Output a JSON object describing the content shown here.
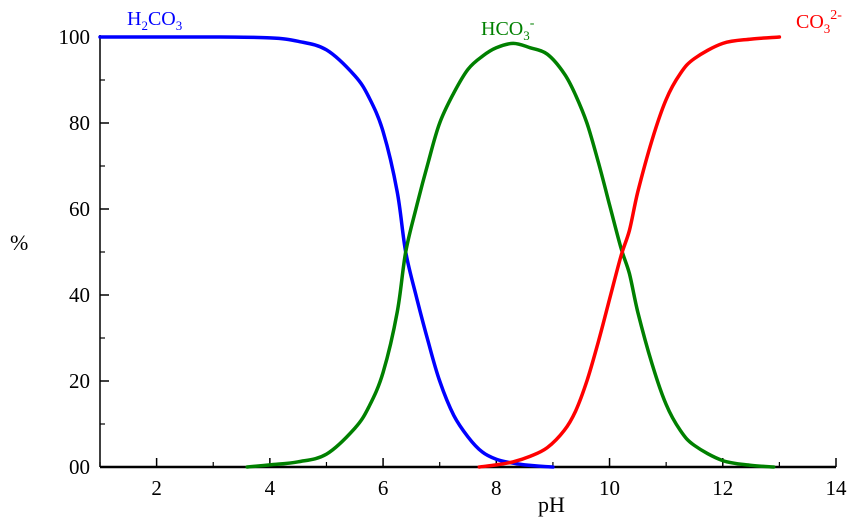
{
  "chart_data": {
    "type": "line",
    "xlabel": "pH",
    "ylabel": "%",
    "xlim": [
      1,
      14
    ],
    "ylim": [
      0,
      100
    ],
    "x_ticks": [
      2,
      4,
      6,
      8,
      10,
      12,
      14
    ],
    "x_minor_ticks": [
      1,
      3,
      5,
      7,
      9,
      11,
      13
    ],
    "y_ticks": [
      0,
      20,
      40,
      60,
      80,
      100
    ],
    "y_tick_labels": [
      "00",
      "20",
      "40",
      "60",
      "80",
      "100"
    ],
    "grid": false,
    "series": [
      {
        "name": "H2CO3",
        "color": "#0000ff",
        "x": [
          1.0,
          2.0,
          3.0,
          4.0,
          4.5,
          5.0,
          5.5,
          5.75,
          6.0,
          6.25,
          6.4,
          6.6,
          6.8,
          7.0,
          7.25,
          7.5,
          7.75,
          8.0,
          8.25,
          8.5,
          8.75,
          9.0
        ],
        "y": [
          100,
          100,
          100,
          99.8,
          99,
          97,
          91,
          86,
          78,
          64,
          50,
          39,
          29,
          20,
          12,
          7,
          3.5,
          1.8,
          1.0,
          0.5,
          0.2,
          0
        ]
      },
      {
        "name": "HCO3-",
        "color": "#008000",
        "x": [
          3.6,
          4.0,
          4.5,
          5.0,
          5.5,
          5.75,
          6.0,
          6.25,
          6.4,
          6.6,
          6.8,
          7.0,
          7.25,
          7.5,
          7.75,
          8.0,
          8.3,
          8.6,
          8.9,
          9.2,
          9.4,
          9.6,
          9.8,
          10.0,
          10.2,
          10.35,
          10.5,
          10.75,
          11.0,
          11.25,
          11.5,
          12.0,
          12.5,
          12.9
        ],
        "y": [
          0,
          0.5,
          1.2,
          3,
          9,
          14,
          22,
          36,
          50,
          61,
          71,
          80,
          87,
          92.5,
          95.5,
          97.5,
          98.5,
          97.5,
          96,
          91.5,
          86.5,
          80,
          71,
          61,
          51,
          45,
          36,
          24,
          14.5,
          8.5,
          5,
          1.5,
          0.4,
          0
        ]
      },
      {
        "name": "CO3(2-)",
        "color": "#ff0000",
        "x": [
          7.7,
          8.0,
          8.3,
          8.6,
          8.9,
          9.2,
          9.4,
          9.6,
          9.8,
          10.0,
          10.2,
          10.35,
          10.5,
          10.75,
          11.0,
          11.25,
          11.5,
          12.0,
          12.5,
          13.0
        ],
        "y": [
          0,
          0.5,
          1.2,
          2.5,
          4.5,
          8.5,
          13,
          20,
          29,
          39,
          49,
          55,
          64,
          76,
          85.5,
          91.5,
          95,
          98.5,
          99.5,
          100
        ]
      }
    ],
    "labels": {
      "h2co3": {
        "main": "H",
        "sub1": "2",
        "rest": "CO",
        "sub2": "3",
        "color": "#0000ff"
      },
      "hco3": {
        "main": "HCO",
        "sub": "3",
        "sup": "-",
        "color": "#008000"
      },
      "co3": {
        "main": "CO",
        "sub": "3",
        "sup": "2-",
        "color": "#ff0000"
      }
    }
  }
}
